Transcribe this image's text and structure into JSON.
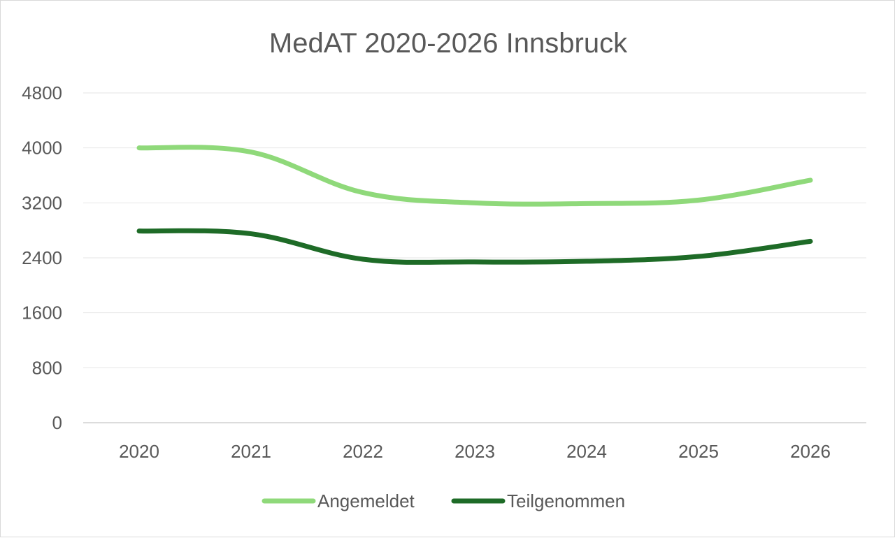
{
  "chart_data": {
    "type": "line",
    "title": "MedAT 2020-2026 Innsbruck",
    "xlabel": "",
    "ylabel": "",
    "categories": [
      "2020",
      "2021",
      "2022",
      "2023",
      "2024",
      "2025",
      "2026"
    ],
    "ylim": [
      0,
      4800
    ],
    "yticks": [
      "0",
      "800",
      "1600",
      "2400",
      "3200",
      "4000",
      "4800"
    ],
    "grid": true,
    "legend_position": "bottom",
    "series": [
      {
        "name": "Angemeldet",
        "color": "#8fd97a",
        "values": [
          4000,
          3940,
          3350,
          3200,
          3190,
          3240,
          3530
        ]
      },
      {
        "name": "Teilgenommen",
        "color": "#1e6b27",
        "values": [
          2790,
          2750,
          2380,
          2340,
          2350,
          2420,
          2640
        ]
      }
    ]
  }
}
